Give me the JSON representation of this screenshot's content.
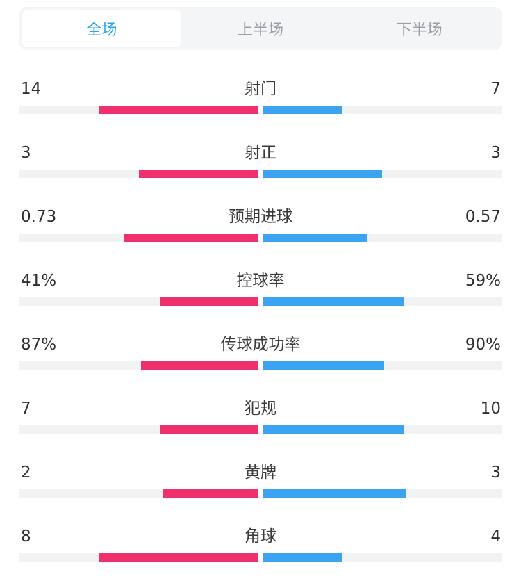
{
  "tabs": [
    "全场",
    "上半场",
    "下半场"
  ],
  "active_tab": 0,
  "colors": {
    "home_bar": "#f0306c",
    "away_bar": "#3aa3f2",
    "active_tab_text": "#2aa2f5",
    "track": "#f1f2f4"
  },
  "stats": [
    {
      "label": "射门",
      "home": "14",
      "away": "7",
      "home_share": 0.667,
      "away_share": 0.333
    },
    {
      "label": "射正",
      "home": "3",
      "away": "3",
      "home_share": 0.5,
      "away_share": 0.5
    },
    {
      "label": "预期进球",
      "home": "0.73",
      "away": "0.57",
      "home_share": 0.56,
      "away_share": 0.44
    },
    {
      "label": "控球率",
      "home": "41%",
      "away": "59%",
      "home_share": 0.41,
      "away_share": 0.59
    },
    {
      "label": "传球成功率",
      "home": "87%",
      "away": "90%",
      "home_share": 0.49,
      "away_share": 0.51
    },
    {
      "label": "犯规",
      "home": "7",
      "away": "10",
      "home_share": 0.41,
      "away_share": 0.59
    },
    {
      "label": "黄牌",
      "home": "2",
      "away": "3",
      "home_share": 0.4,
      "away_share": 0.6
    },
    {
      "label": "角球",
      "home": "8",
      "away": "4",
      "home_share": 0.667,
      "away_share": 0.333
    }
  ]
}
